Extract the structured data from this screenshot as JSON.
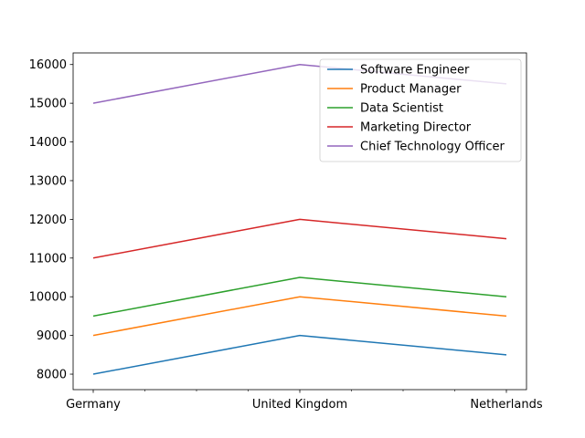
{
  "chart_data": {
    "type": "line",
    "title": "",
    "xlabel": "",
    "ylabel": "",
    "categories": [
      "Germany",
      "United Kingdom",
      "Netherlands"
    ],
    "ylim": [
      7600,
      16300
    ],
    "yticks": [
      8000,
      9000,
      10000,
      11000,
      12000,
      13000,
      14000,
      15000,
      16000
    ],
    "grid": false,
    "legend_position": "upper-right",
    "series": [
      {
        "name": "Software Engineer",
        "color": "#1f77b4",
        "values": [
          8000,
          9000,
          8500
        ]
      },
      {
        "name": "Product Manager",
        "color": "#ff7f0e",
        "values": [
          9000,
          10000,
          9500
        ]
      },
      {
        "name": "Data Scientist",
        "color": "#2ca02c",
        "values": [
          9500,
          10500,
          10000
        ]
      },
      {
        "name": "Marketing Director",
        "color": "#d62728",
        "values": [
          11000,
          12000,
          11500
        ]
      },
      {
        "name": "Chief Technology Officer",
        "color": "#9467bd",
        "values": [
          15000,
          16000,
          15500
        ]
      }
    ]
  }
}
